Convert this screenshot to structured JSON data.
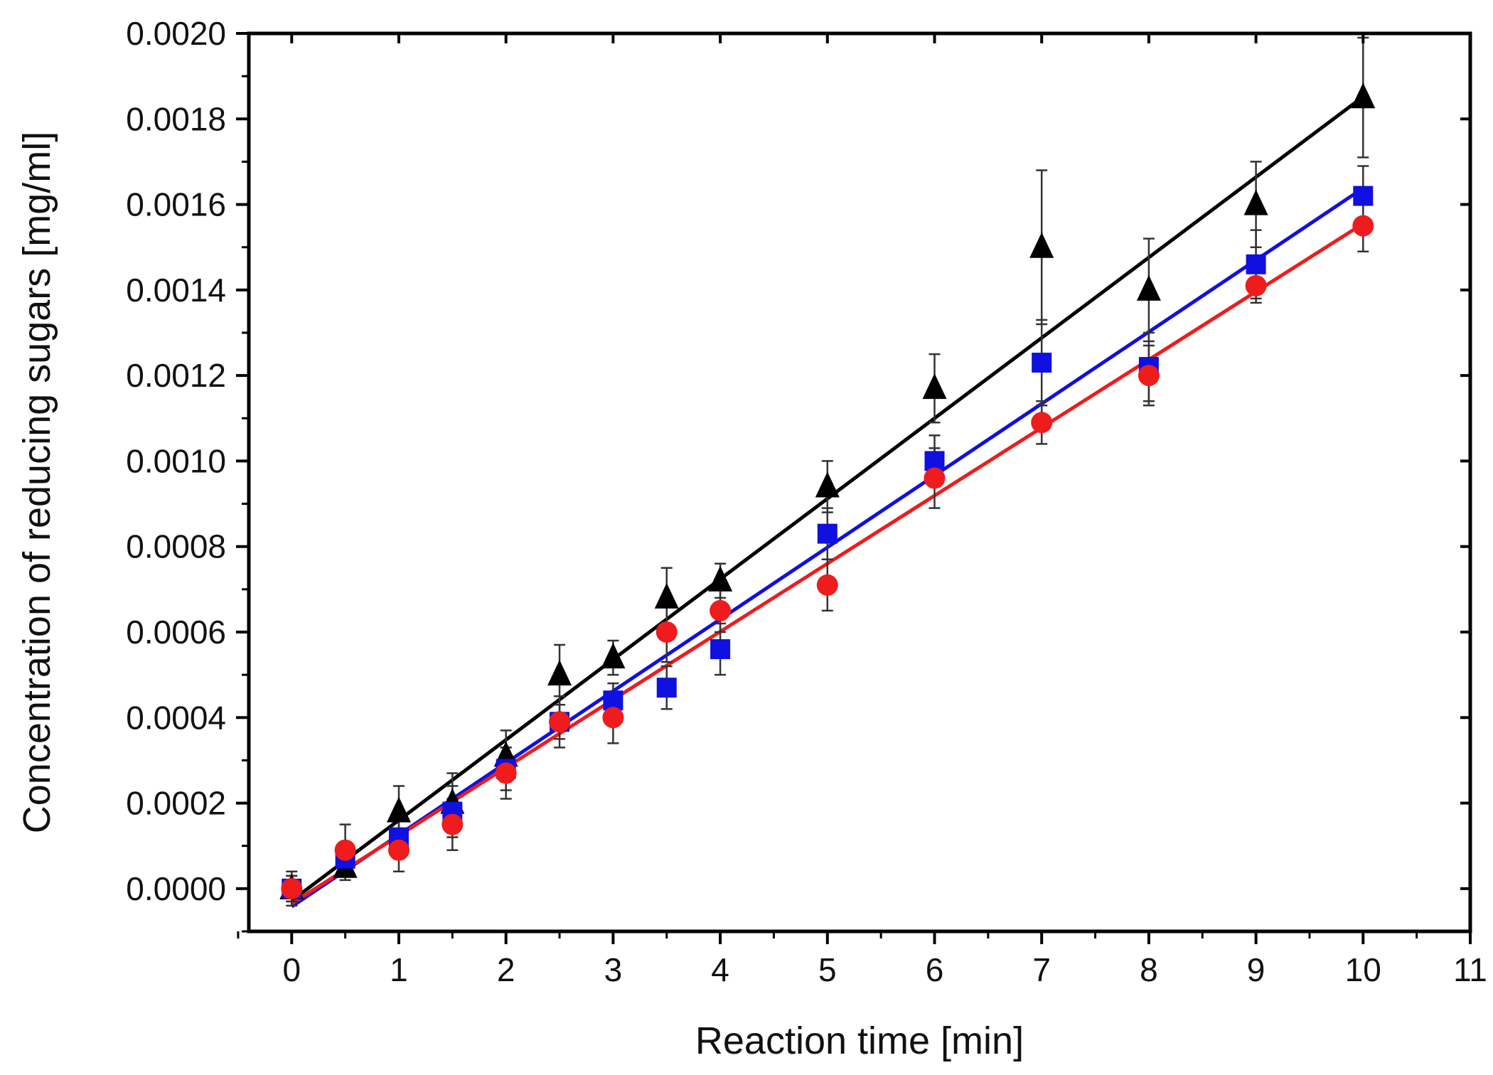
{
  "chart_data": {
    "type": "scatter",
    "title": "",
    "xlabel": "Reaction time [min]",
    "ylabel": "Concentration of reducing sugars [mg/ml]",
    "xlim": [
      -0.4,
      11
    ],
    "ylim": [
      -0.0001,
      0.002
    ],
    "xticks": [
      0,
      1,
      2,
      3,
      4,
      5,
      6,
      7,
      8,
      9,
      10,
      11
    ],
    "xtick_labels": [
      "0",
      "1",
      "2",
      "3",
      "4",
      "5",
      "6",
      "7",
      "8",
      "9",
      "10",
      "11"
    ],
    "yticks": [
      0.0,
      0.0002,
      0.0004,
      0.0006,
      0.0008,
      0.001,
      0.0012,
      0.0014,
      0.0016,
      0.0018,
      0.002
    ],
    "ytick_labels": [
      "0.0000",
      "0.0002",
      "0.0004",
      "0.0006",
      "0.0008",
      "0.0010",
      "0.0012",
      "0.0014",
      "0.0016",
      "0.0018",
      "0.0020"
    ],
    "grid": false,
    "legend": "none",
    "series": [
      {
        "name": "triangles",
        "marker": "triangle",
        "color": "#000000",
        "x": [
          0,
          0.5,
          1,
          1.5,
          2,
          2.5,
          3,
          3.5,
          4,
          5,
          6,
          7,
          8,
          9,
          10
        ],
        "y": [
          0.0,
          5e-05,
          0.00018,
          0.0002,
          0.00031,
          0.0005,
          0.00054,
          0.00068,
          0.00072,
          0.00094,
          0.00117,
          0.0015,
          0.0014,
          0.0016,
          0.00185
        ],
        "err": [
          4e-05,
          3e-05,
          6e-05,
          7e-05,
          6e-05,
          7e-05,
          4e-05,
          7e-05,
          4e-05,
          6e-05,
          8e-05,
          0.00018,
          0.00012,
          0.0001,
          0.00014
        ],
        "fit": {
          "slope": 0.000188,
          "intercept": -2.8e-05
        }
      },
      {
        "name": "squares",
        "marker": "square",
        "color": "#1010e0",
        "x": [
          0,
          0.5,
          1,
          1.5,
          2,
          2.5,
          3,
          3.5,
          4,
          5,
          6,
          7,
          8,
          9,
          10
        ],
        "y": [
          0.0,
          7e-05,
          0.00012,
          0.00018,
          0.00028,
          0.00039,
          0.00044,
          0.00047,
          0.00056,
          0.00083,
          0.001,
          0.00123,
          0.00122,
          0.00146,
          0.00162
        ],
        "err": [
          3e-05,
          4e-05,
          5e-05,
          6e-05,
          5e-05,
          4e-05,
          4e-05,
          5e-05,
          6e-05,
          6e-05,
          6e-05,
          0.0001,
          8e-05,
          8e-05,
          7e-05
        ],
        "fit": {
          "slope": 0.000168,
          "intercept": -4.2e-05
        }
      },
      {
        "name": "circles",
        "marker": "circle",
        "color": "#ee1c1c",
        "x": [
          0,
          0.5,
          1,
          1.5,
          2,
          2.5,
          3,
          3.5,
          4,
          5,
          6,
          7,
          8,
          9,
          10
        ],
        "y": [
          0.0,
          9e-05,
          9e-05,
          0.00015,
          0.00027,
          0.00039,
          0.0004,
          0.0006,
          0.00065,
          0.00071,
          0.00096,
          0.00109,
          0.0012,
          0.00141,
          0.00155
        ],
        "err": [
          3e-05,
          6e-05,
          5e-05,
          6e-05,
          6e-05,
          6e-05,
          6e-05,
          7e-05,
          5e-05,
          6e-05,
          7e-05,
          5e-05,
          7e-05,
          4e-05,
          6e-05
        ],
        "fit": {
          "slope": 0.000159,
          "intercept": -3.5e-05
        }
      }
    ]
  }
}
